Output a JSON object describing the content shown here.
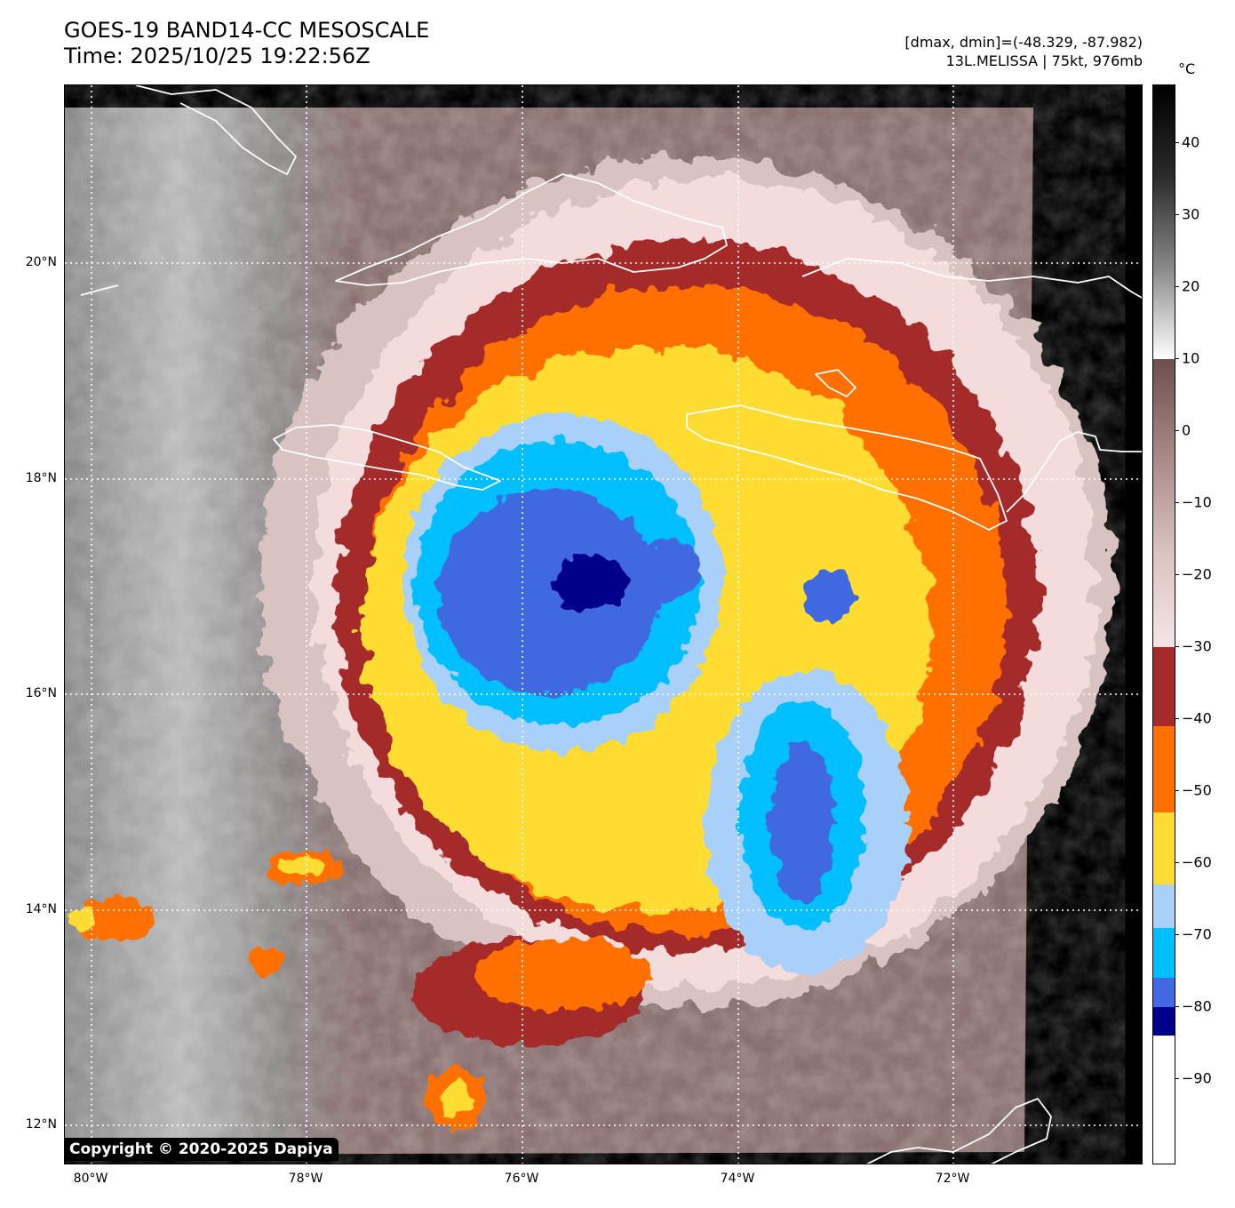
{
  "title": {
    "line1": "GOES-19 BAND14-CC MESOSCALE",
    "line2": "Time: 2025/10/25 19:22:56Z"
  },
  "meta": {
    "range": "[dmax, dmin]=(-48.329, -87.982)",
    "storm": "13L.MELISSA | 75kt, 976mb"
  },
  "map": {
    "lat_labels": [
      "20°N",
      "18°N",
      "16°N",
      "14°N",
      "12°N"
    ],
    "lon_labels": [
      "80°W",
      "78°W",
      "76°W",
      "74°W",
      "72°W"
    ],
    "coastline_color": "#ffffff",
    "grid_color": "#ffffff",
    "center_lat": 16.9,
    "center_lon": -75.6
  },
  "colorbar": {
    "unit": "°C",
    "ticks": [
      "40",
      "30",
      "20",
      "10",
      "0",
      "−10",
      "−20",
      "−30",
      "−40",
      "−50",
      "−60",
      "−70",
      "−80",
      "−90"
    ],
    "bands": [
      {
        "from": 48,
        "to": 10,
        "colors": [
          "#000000",
          "#2b2b2b",
          "#888888",
          "#ffffff"
        ]
      },
      {
        "from": 10,
        "to": -30,
        "colors": [
          "#6e4e4e",
          "#a98787",
          "#d9c2c2",
          "#f6e4e4"
        ]
      },
      {
        "from": -30,
        "to": -41,
        "colors": [
          "#a52a2a"
        ]
      },
      {
        "from": -41,
        "to": -53,
        "colors": [
          "#ff7000"
        ]
      },
      {
        "from": -53,
        "to": -63,
        "colors": [
          "#ffdc32"
        ]
      },
      {
        "from": -63,
        "to": -69,
        "colors": [
          "#a8d0f8"
        ]
      },
      {
        "from": -69,
        "to": -76,
        "colors": [
          "#00bfff"
        ]
      },
      {
        "from": -76,
        "to": -80,
        "colors": [
          "#4169e1"
        ]
      },
      {
        "from": -80,
        "to": -84,
        "colors": [
          "#00008b"
        ]
      },
      {
        "from": -84,
        "to": -102,
        "colors": [
          "#ffffff"
        ]
      }
    ]
  },
  "copyright": "Copyright © 2020-2025 Dapiya"
}
